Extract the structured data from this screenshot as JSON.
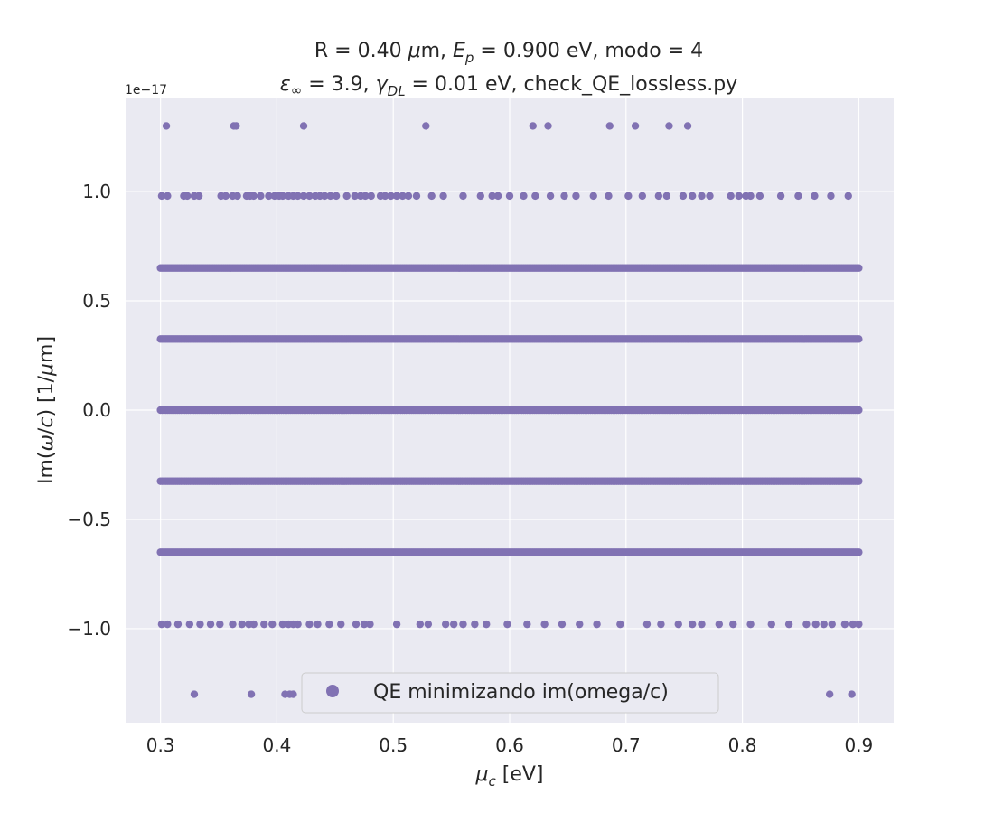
{
  "chart_data": {
    "type": "scatter",
    "title_line1": "R = 0.40 μm, E_p = 0.900 eV, modo = 4",
    "title_line2": "ε∞ = 3.9, γ_DL = 0.01 eV, check_QE_lossless.py",
    "xlabel": "μ_c [eV]",
    "ylabel": "Im(ω/c) [1/μm]",
    "y_offset_label": "1e−17",
    "xlim": [
      0.27,
      0.93
    ],
    "ylim": [
      -1.43,
      1.43
    ],
    "x_ticks": [
      0.3,
      0.4,
      0.5,
      0.6,
      0.7,
      0.8,
      0.9
    ],
    "x_tick_labels": [
      "0.3",
      "0.4",
      "0.5",
      "0.6",
      "0.7",
      "0.8",
      "0.9"
    ],
    "y_ticks": [
      1.0,
      0.5,
      0.0,
      -0.5,
      -1.0
    ],
    "y_tick_labels": [
      "1.0",
      "0.5",
      "0.0",
      "−0.5",
      "−1.0"
    ],
    "grid": true,
    "legend_position": "lower center",
    "colors": {
      "marker": "#8172b3",
      "plot_background": "#eaeaf2",
      "grid": "#ffffff"
    },
    "series": [
      {
        "name": "QE minimizando im(omega/c)",
        "x_range": [
          0.3,
          0.9
        ],
        "dense_levels": [
          0.65,
          0.325,
          0.0,
          -0.325,
          -0.65
        ],
        "sparse_levels": {
          "y_1.3": [
            0.305,
            0.363,
            0.365,
            0.423,
            0.528,
            0.62,
            0.633,
            0.686,
            0.708,
            0.737,
            0.753
          ],
          "y_0.98": [
            0.301,
            0.306,
            0.32,
            0.323,
            0.329,
            0.333,
            0.352,
            0.356,
            0.362,
            0.366,
            0.374,
            0.377,
            0.38,
            0.386,
            0.393,
            0.398,
            0.402,
            0.405,
            0.41,
            0.414,
            0.418,
            0.423,
            0.428,
            0.433,
            0.437,
            0.441,
            0.446,
            0.451,
            0.46,
            0.467,
            0.472,
            0.476,
            0.481,
            0.489,
            0.493,
            0.498,
            0.503,
            0.508,
            0.513,
            0.52,
            0.533,
            0.543,
            0.56,
            0.575,
            0.585,
            0.59,
            0.6,
            0.612,
            0.622,
            0.635,
            0.647,
            0.657,
            0.672,
            0.685,
            0.702,
            0.714,
            0.728,
            0.735,
            0.749,
            0.757,
            0.765,
            0.772,
            0.79,
            0.797,
            0.803,
            0.807,
            0.815,
            0.833,
            0.848,
            0.862,
            0.876,
            0.891
          ],
          "y_-0.98": [
            0.301,
            0.306,
            0.315,
            0.325,
            0.334,
            0.343,
            0.351,
            0.362,
            0.37,
            0.376,
            0.38,
            0.389,
            0.396,
            0.405,
            0.41,
            0.414,
            0.418,
            0.428,
            0.435,
            0.445,
            0.455,
            0.468,
            0.475,
            0.48,
            0.503,
            0.523,
            0.53,
            0.545,
            0.552,
            0.56,
            0.57,
            0.58,
            0.598,
            0.615,
            0.63,
            0.645,
            0.66,
            0.675,
            0.695,
            0.718,
            0.73,
            0.745,
            0.757,
            0.765,
            0.78,
            0.792,
            0.807,
            0.825,
            0.84,
            0.855,
            0.863,
            0.87,
            0.877,
            0.888,
            0.895,
            0.9
          ],
          "y_-1.3": [
            0.329,
            0.378,
            0.407,
            0.411,
            0.414,
            0.875,
            0.894
          ]
        }
      }
    ]
  }
}
